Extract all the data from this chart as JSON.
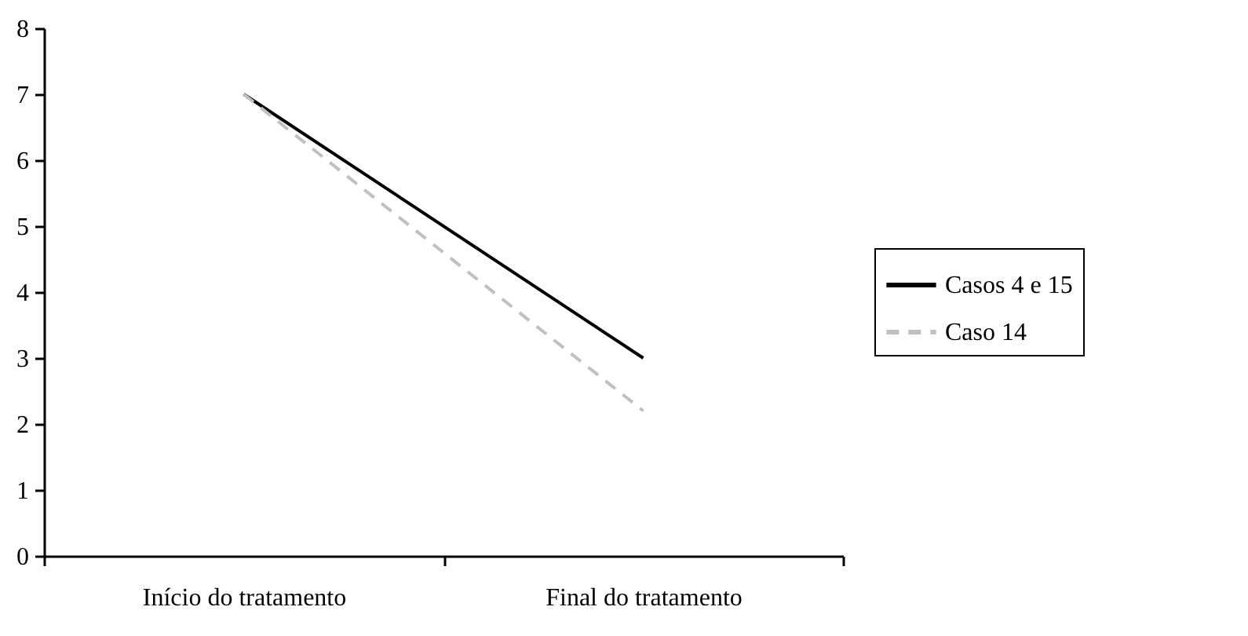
{
  "chart_data": {
    "type": "line",
    "categories": [
      "Início do tratamento",
      "Final do tratamento"
    ],
    "series": [
      {
        "name": "Casos 4 e 15",
        "color": "#000000",
        "line_style": "solid",
        "values": [
          7,
          3
        ]
      },
      {
        "name": "Caso 14",
        "color": "#c0c0c0",
        "line_style": "dashed",
        "values": [
          7,
          2.2
        ]
      }
    ],
    "ylim": [
      0,
      8
    ],
    "yticks": [
      0,
      1,
      2,
      3,
      4,
      5,
      6,
      7,
      8
    ],
    "grid": false,
    "legend": "right",
    "marker": "none"
  }
}
